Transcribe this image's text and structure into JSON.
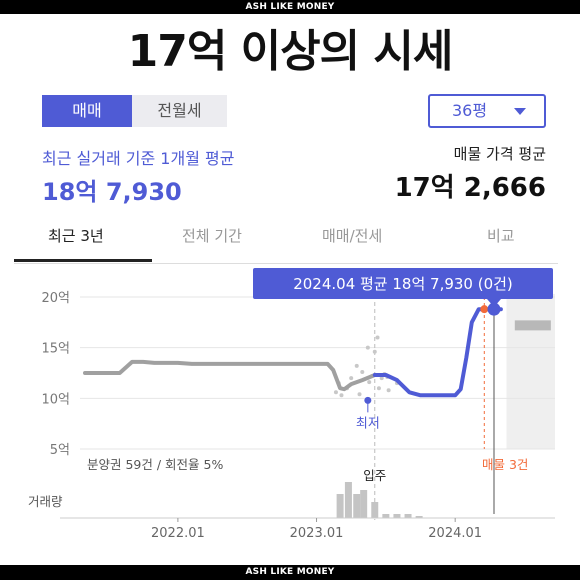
{
  "watermark": {
    "top": "ASH LIKE MONEY",
    "bottom": "ASH LIKE MONEY"
  },
  "headline": "17억 이상의 시세",
  "trade_toggle": {
    "sale": "매매",
    "rent": "전월세",
    "active": "sale"
  },
  "size_select": {
    "value": "36평"
  },
  "recent_avg": {
    "label": "최근 실거래 기준 1개월 평균",
    "value": "18억 7,930"
  },
  "asking": {
    "label": "매물 가격 평균",
    "value": "17억 2,666"
  },
  "tabs": [
    {
      "label": "최근 3년",
      "active": true
    },
    {
      "label": "전체 기간",
      "active": false
    },
    {
      "label": "매매/전세",
      "active": false
    },
    {
      "label": "비교",
      "active": false
    }
  ],
  "colors": {
    "accent": "#4f5bd5",
    "orange": "#f26b3a",
    "gray": "#a0a0a0"
  },
  "chart_data": {
    "type": "line",
    "tooltip": "2024.04 평균 18억 7,930 (0건)",
    "y_ticks": [
      "20억",
      "15억",
      "10억",
      "5억"
    ],
    "x_ticks": [
      "2022.01",
      "2023.01",
      "2024.01"
    ],
    "ylim": [
      5,
      20.5
    ],
    "xlim": [
      2021.33,
      2024.76
    ],
    "series": [
      {
        "x": [
          2021.33,
          2021.42,
          2021.58,
          2021.67,
          2021.75,
          2021.83,
          2022.0,
          2022.1,
          2022.25,
          2022.5,
          2022.75,
          2023.0,
          2023.08,
          2023.12,
          2023.17,
          2023.2,
          2023.25,
          2023.33,
          2023.42
        ],
        "y": [
          12.5,
          12.5,
          12.5,
          13.6,
          13.6,
          13.5,
          13.5,
          13.4,
          13.4,
          13.4,
          13.4,
          13.4,
          13.4,
          12.8,
          11.0,
          10.9,
          11.4,
          11.8,
          12.3
        ]
      },
      {
        "x": [
          2023.42,
          2023.5,
          2023.58,
          2023.67,
          2023.75,
          2023.83,
          2023.92,
          2024.0,
          2024.04,
          2024.08,
          2024.12,
          2024.17,
          2024.25,
          2024.29,
          2024.33
        ],
        "y": [
          12.3,
          12.3,
          11.8,
          10.6,
          10.3,
          10.3,
          10.3,
          10.3,
          10.9,
          14.0,
          17.5,
          18.8,
          18.8,
          18.8,
          18.8
        ]
      }
    ],
    "scatter_points": [
      {
        "x": 2023.14,
        "y": 10.6
      },
      {
        "x": 2023.16,
        "y": 11.5
      },
      {
        "x": 2023.18,
        "y": 10.3
      },
      {
        "x": 2023.22,
        "y": 11.0
      },
      {
        "x": 2023.25,
        "y": 12.0
      },
      {
        "x": 2023.29,
        "y": 13.2
      },
      {
        "x": 2023.31,
        "y": 10.4
      },
      {
        "x": 2023.33,
        "y": 12.6
      },
      {
        "x": 2023.37,
        "y": 15.0
      },
      {
        "x": 2023.38,
        "y": 11.6
      },
      {
        "x": 2023.4,
        "y": 12.2
      },
      {
        "x": 2023.42,
        "y": 14.6
      },
      {
        "x": 2023.44,
        "y": 16.0
      },
      {
        "x": 2023.45,
        "y": 11.0
      },
      {
        "x": 2023.47,
        "y": 12.0
      },
      {
        "x": 2023.49,
        "y": 12.4
      },
      {
        "x": 2023.51,
        "y": 12.1
      },
      {
        "x": 2023.52,
        "y": 10.8
      },
      {
        "x": 2023.58,
        "y": 11.5
      }
    ],
    "min_marker": {
      "x": 2023.37,
      "y": 9.8,
      "label": "최저"
    },
    "orange_point": {
      "x": 2024.21,
      "y": 18.8
    },
    "current_point": {
      "x": 2024.28,
      "y": 18.8
    },
    "asking_band": {
      "x0": 2024.43,
      "x1": 2024.69,
      "y": 17.2
    },
    "move_in": {
      "x": 2023.42,
      "label": "입주"
    },
    "presale_note": "분양권 59건 / 회전율 5%",
    "listing_note": "매물 3건",
    "volume_label": "거래량",
    "volume": [
      {
        "x": 2023.17,
        "v": 6
      },
      {
        "x": 2023.23,
        "v": 9
      },
      {
        "x": 2023.29,
        "v": 6
      },
      {
        "x": 2023.34,
        "v": 7
      },
      {
        "x": 2023.42,
        "v": 4
      },
      {
        "x": 2023.5,
        "v": 1
      },
      {
        "x": 2023.58,
        "v": 1
      },
      {
        "x": 2023.66,
        "v": 1
      },
      {
        "x": 2023.74,
        "v": 0.5
      }
    ]
  }
}
